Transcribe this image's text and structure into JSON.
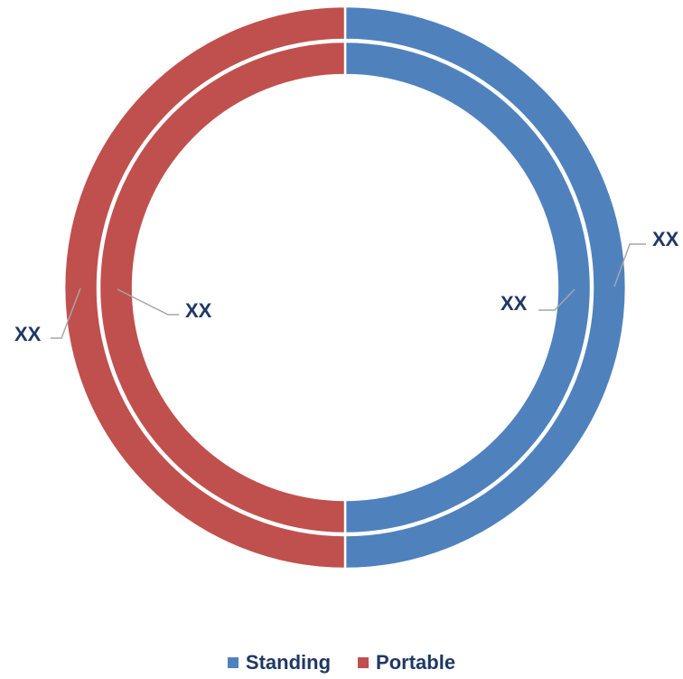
{
  "chart_data": {
    "type": "pie",
    "subtype": "doughnut",
    "series": [
      {
        "ring": "outer",
        "values": [
          50,
          50
        ],
        "labels": [
          "XX",
          "XX"
        ]
      },
      {
        "ring": "inner",
        "values": [
          50,
          50
        ],
        "labels": [
          "XX",
          "XX"
        ]
      }
    ],
    "categories": [
      "Standing",
      "Portable"
    ],
    "colors": {
      "Standing": "#4f81bd",
      "Portable": "#c0504d"
    },
    "legend_position": "bottom",
    "label_color": "#1f3864",
    "leader_color": "#a6a6a6"
  }
}
